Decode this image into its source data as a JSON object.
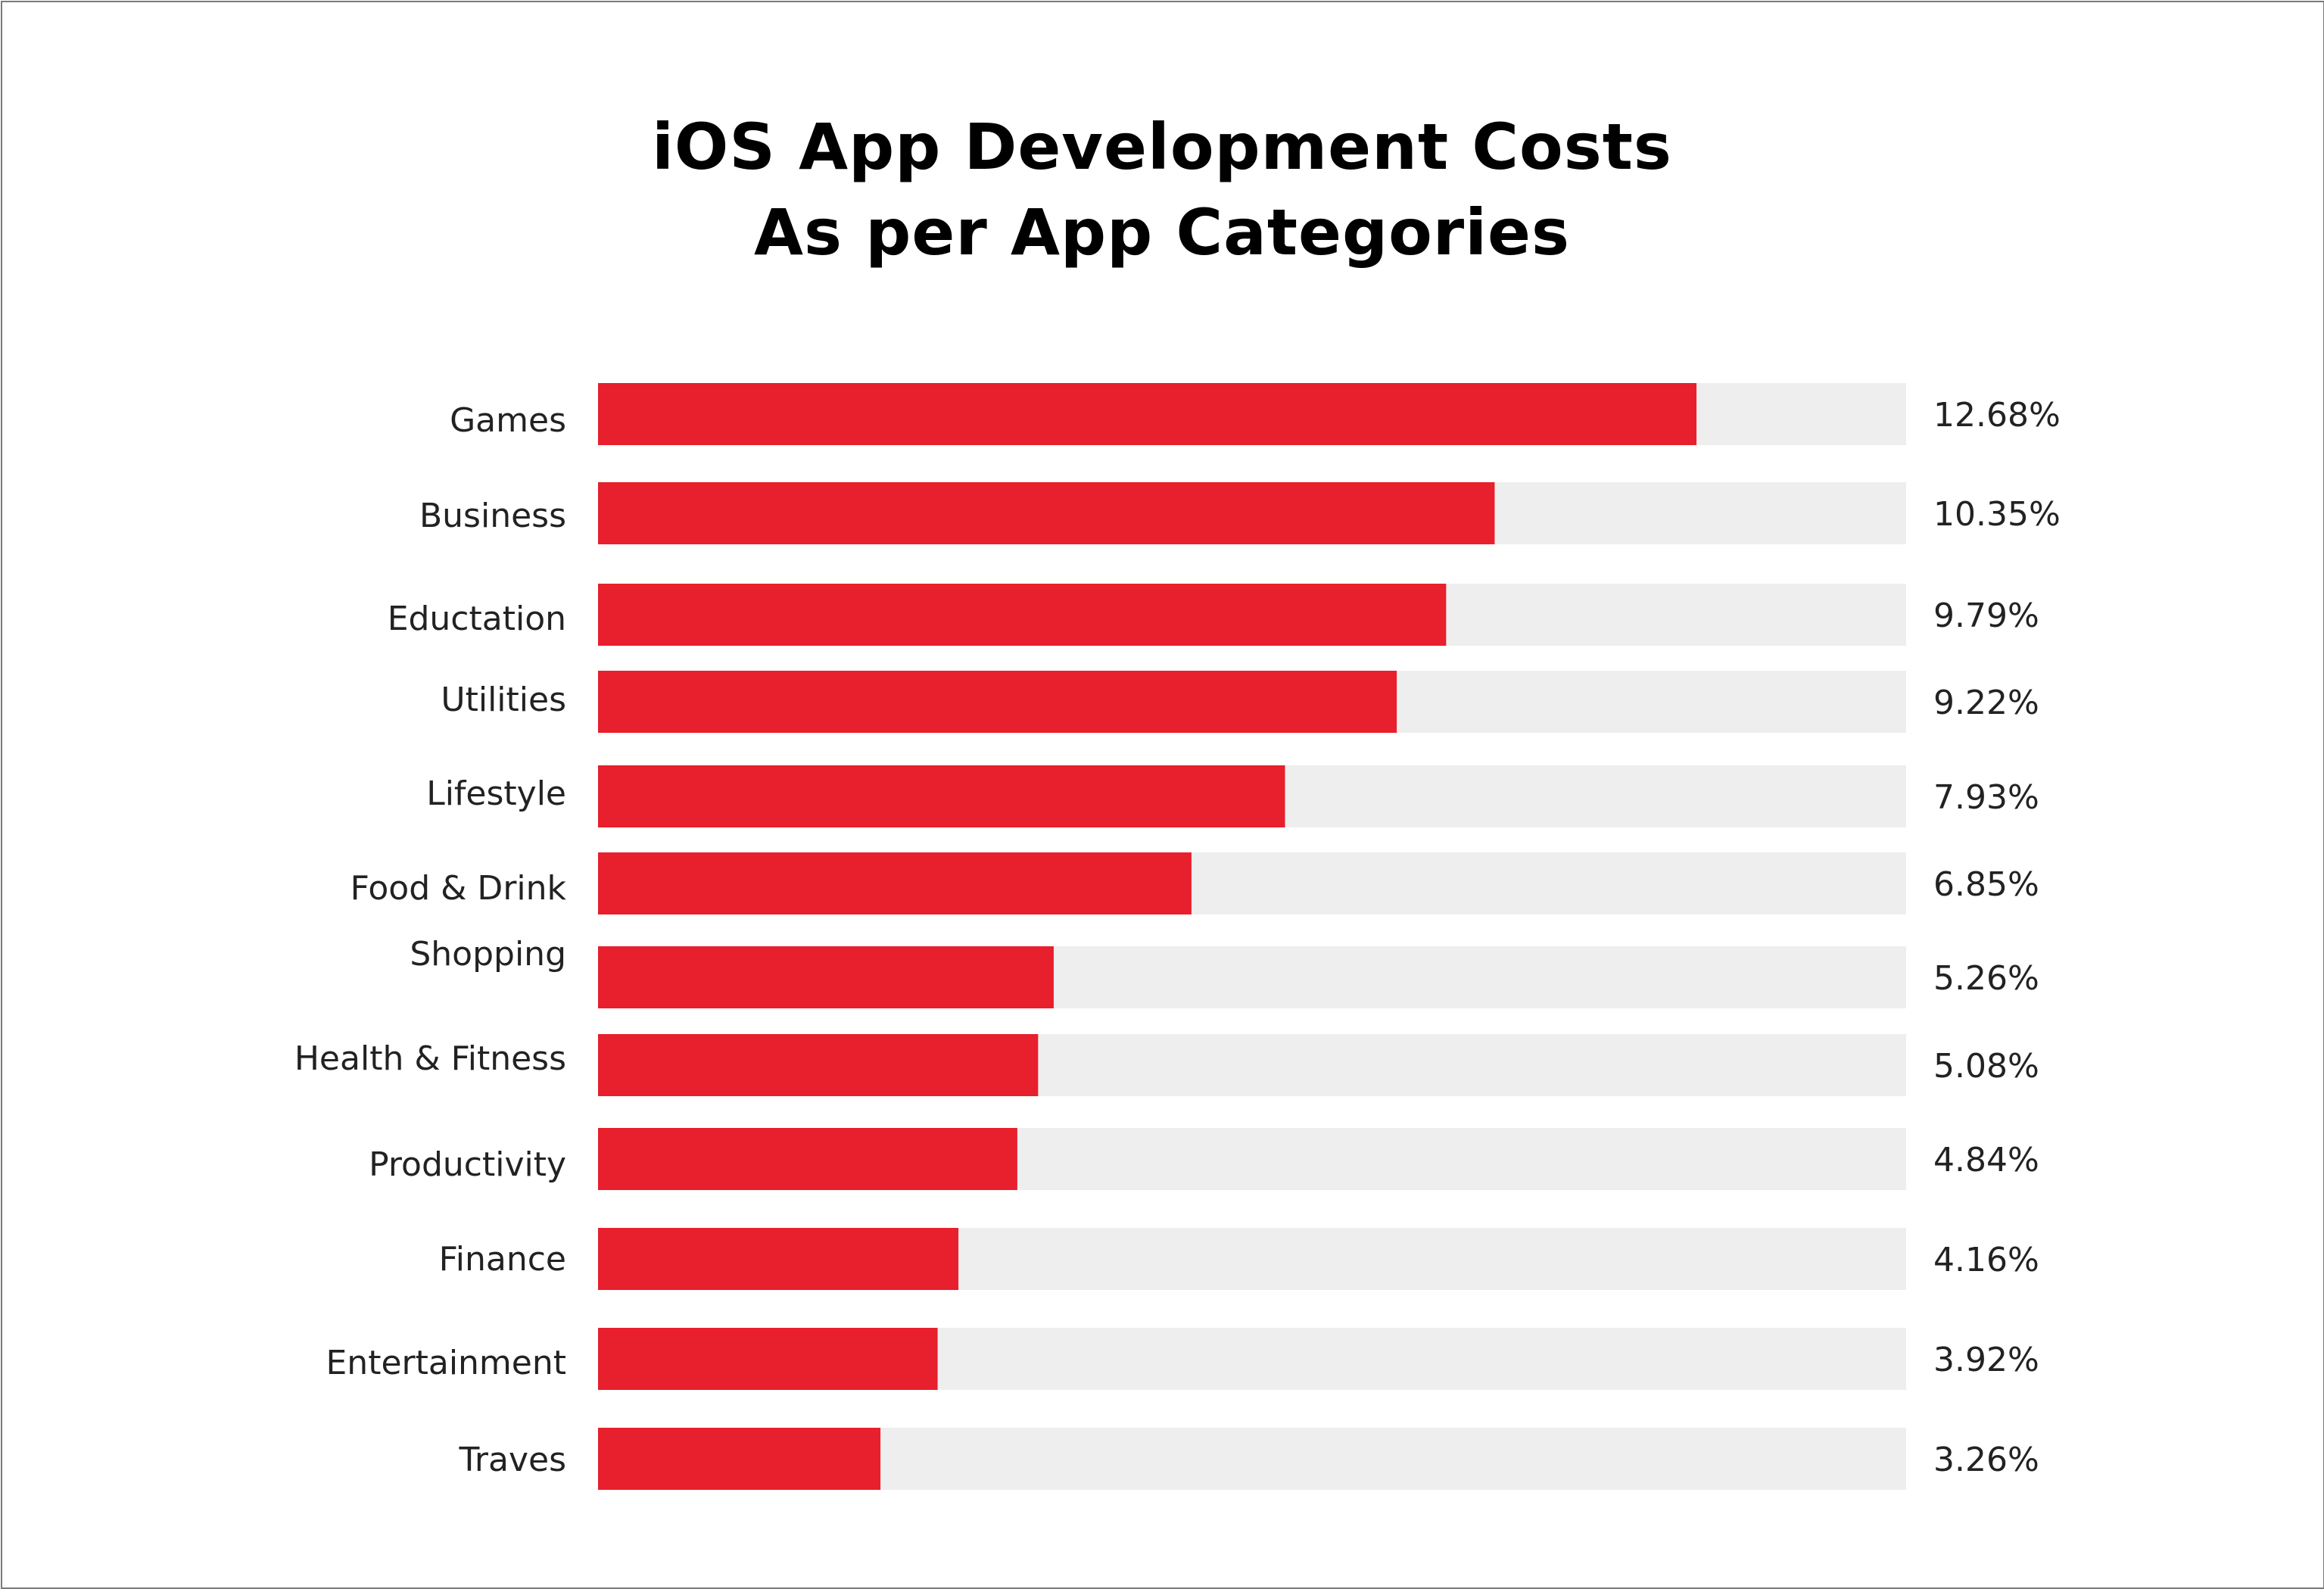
{
  "colors": {
    "bar": "#e81f2c",
    "track": "#eeeeee",
    "text": "#222222",
    "title": "#000000"
  },
  "chart_data": {
    "type": "bar",
    "orientation": "horizontal",
    "title_lines": [
      "iOS App Development Costs",
      "As per App Categories"
    ],
    "xlabel": "",
    "ylabel": "",
    "xlim": [
      0,
      15.1
    ],
    "grid": false,
    "legend": "none",
    "categories": [
      "Games",
      "Business",
      "Eductation",
      "Utilities",
      "Lifestyle",
      "Food & Drink",
      "Shopping",
      "Health & Fitness",
      "Productivity",
      "Finance",
      "Entertainment",
      "Traves"
    ],
    "values": [
      12.68,
      10.35,
      9.79,
      9.22,
      7.93,
      6.85,
      5.26,
      5.08,
      4.84,
      4.16,
      3.92,
      3.26
    ],
    "value_labels": [
      "12.68%",
      "10.35%",
      "9.79%",
      "9.22%",
      "7.93%",
      "6.85%",
      "5.26%",
      "5.08%",
      "4.84%",
      "4.16%",
      "3.92%",
      "3.26%"
    ]
  }
}
